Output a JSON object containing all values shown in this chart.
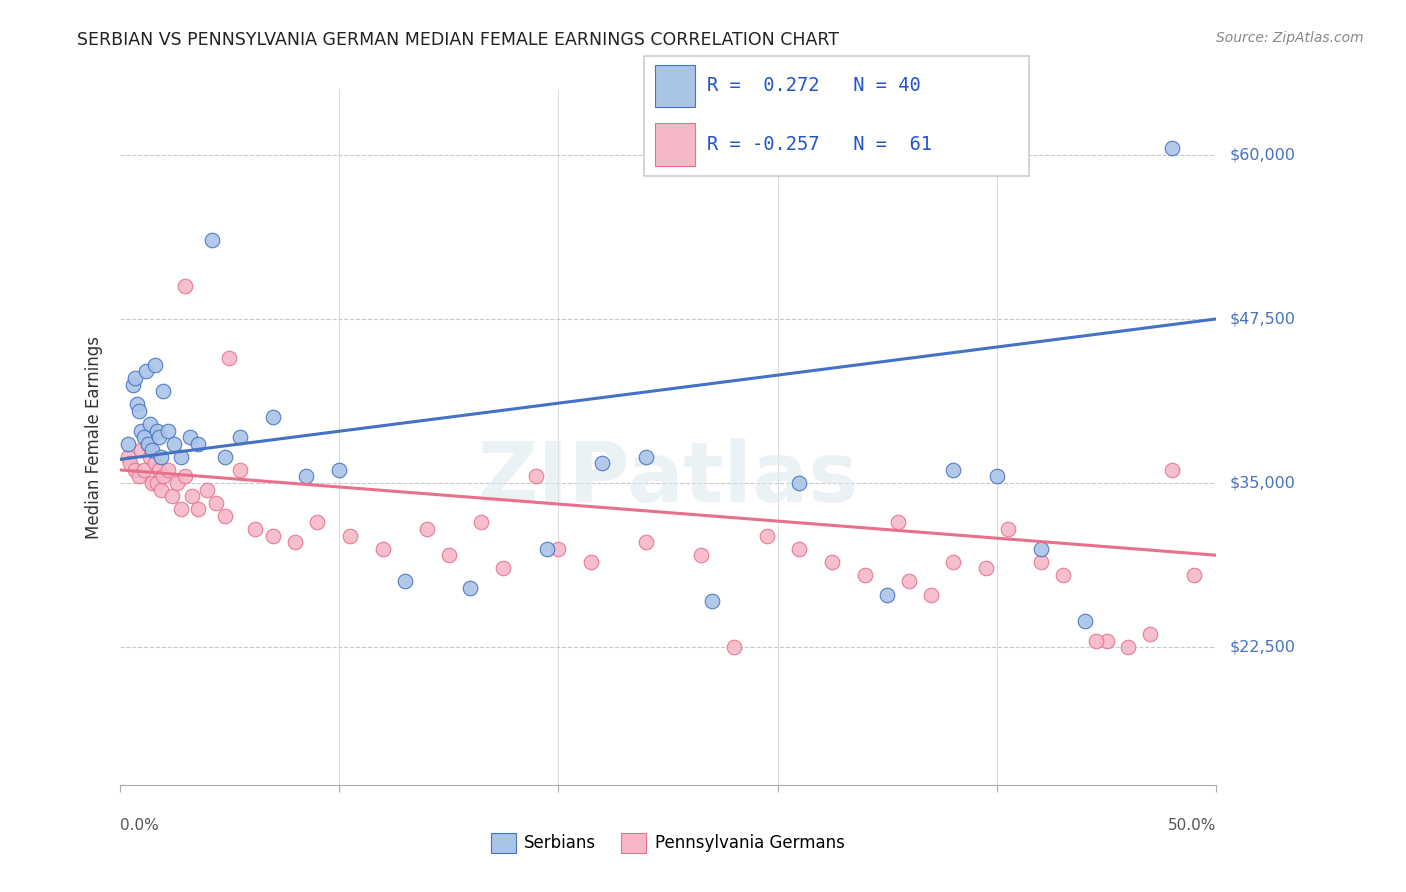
{
  "title": "SERBIAN VS PENNSYLVANIA GERMAN MEDIAN FEMALE EARNINGS CORRELATION CHART",
  "source": "Source: ZipAtlas.com",
  "ylabel": "Median Female Earnings",
  "y_tick_labels": [
    "$22,500",
    "$35,000",
    "$47,500",
    "$60,000"
  ],
  "y_tick_values": [
    22500,
    35000,
    47500,
    60000
  ],
  "y_min": 12000,
  "y_max": 65000,
  "x_min": 0.0,
  "x_max": 0.5,
  "serbian_color": "#aac4e8",
  "serbian_line_color": "#4472c4",
  "pa_german_color": "#f4b8c8",
  "pa_german_line_color": "#e8708a",
  "legend_R_serbian": " 0.272",
  "legend_N_serbian": "40",
  "legend_R_pa": "-0.257",
  "legend_N_pa": " 61",
  "watermark": "ZIPatlas",
  "serb_trend_x": [
    0.0,
    0.5
  ],
  "serb_trend_y": [
    36800,
    47500
  ],
  "pa_trend_x": [
    0.0,
    0.5
  ],
  "pa_trend_y": [
    36000,
    29500
  ],
  "serbian_x": [
    0.004,
    0.006,
    0.007,
    0.008,
    0.009,
    0.01,
    0.011,
    0.012,
    0.013,
    0.014,
    0.015,
    0.016,
    0.017,
    0.018,
    0.019,
    0.02,
    0.022,
    0.025,
    0.028,
    0.032,
    0.036,
    0.042,
    0.048,
    0.055,
    0.07,
    0.085,
    0.1,
    0.13,
    0.16,
    0.195,
    0.22,
    0.24,
    0.27,
    0.31,
    0.35,
    0.38,
    0.4,
    0.42,
    0.44,
    0.48
  ],
  "serbian_y": [
    38000,
    42500,
    43000,
    41000,
    40500,
    39000,
    38500,
    43500,
    38000,
    39500,
    37500,
    44000,
    39000,
    38500,
    37000,
    42000,
    39000,
    38000,
    37000,
    38500,
    38000,
    53500,
    37000,
    38500,
    40000,
    35500,
    36000,
    27500,
    27000,
    30000,
    36500,
    37000,
    26000,
    35000,
    26500,
    36000,
    35500,
    30000,
    24500,
    60500
  ],
  "pa_x": [
    0.004,
    0.005,
    0.007,
    0.009,
    0.01,
    0.011,
    0.013,
    0.014,
    0.015,
    0.016,
    0.017,
    0.018,
    0.019,
    0.02,
    0.022,
    0.024,
    0.026,
    0.028,
    0.03,
    0.033,
    0.036,
    0.04,
    0.044,
    0.048,
    0.055,
    0.062,
    0.07,
    0.08,
    0.09,
    0.105,
    0.12,
    0.14,
    0.165,
    0.19,
    0.215,
    0.24,
    0.265,
    0.295,
    0.325,
    0.355,
    0.38,
    0.405,
    0.43,
    0.45,
    0.46,
    0.47,
    0.48,
    0.49,
    0.31,
    0.36,
    0.395,
    0.42,
    0.445,
    0.15,
    0.175,
    0.2,
    0.34,
    0.37,
    0.28,
    0.03,
    0.05
  ],
  "pa_y": [
    37000,
    36500,
    36000,
    35500,
    37500,
    36000,
    38000,
    37000,
    35000,
    36500,
    35000,
    36000,
    34500,
    35500,
    36000,
    34000,
    35000,
    33000,
    35500,
    34000,
    33000,
    34500,
    33500,
    32500,
    36000,
    31500,
    31000,
    30500,
    32000,
    31000,
    30000,
    31500,
    32000,
    35500,
    29000,
    30500,
    29500,
    31000,
    29000,
    32000,
    29000,
    31500,
    28000,
    23000,
    22500,
    23500,
    36000,
    28000,
    30000,
    27500,
    28500,
    29000,
    23000,
    29500,
    28500,
    30000,
    28000,
    26500,
    22500,
    50000,
    44500
  ]
}
